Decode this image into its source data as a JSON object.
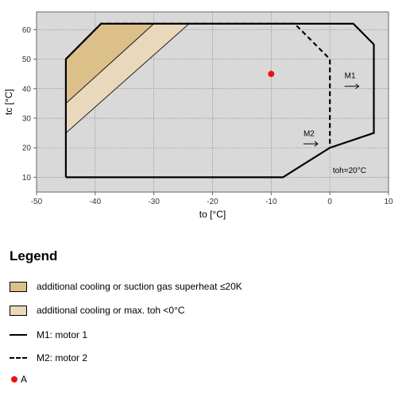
{
  "chart_data": {
    "type": "line",
    "xlabel": "to [°C]",
    "ylabel": "tc [°C]",
    "xlim": [
      -50,
      10
    ],
    "ylim": [
      5,
      66
    ],
    "x_ticks": [
      -50,
      -40,
      -30,
      -20,
      -10,
      0,
      10
    ],
    "y_ticks": [
      10,
      20,
      30,
      40,
      50,
      60
    ],
    "grid": true,
    "plot_background": "#d9d9d9",
    "series": [
      {
        "name": "M1: motor 1",
        "style": "solid",
        "points": [
          [
            -45,
            10
          ],
          [
            -8,
            10
          ],
          [
            0,
            20
          ],
          [
            7.5,
            25
          ],
          [
            7.5,
            55
          ],
          [
            4,
            62
          ],
          [
            -39,
            62
          ],
          [
            -45,
            50
          ],
          [
            -45,
            10
          ]
        ]
      },
      {
        "name": "M2: motor 2",
        "style": "dashed",
        "points": [
          [
            -45,
            50
          ],
          [
            -39,
            62
          ],
          [
            -6,
            62
          ],
          [
            0,
            50
          ],
          [
            0,
            20
          ]
        ]
      }
    ],
    "regions": [
      {
        "name": "additional cooling or suction gas superheat ≤20K",
        "color": "#dcc08a",
        "points": [
          [
            -45,
            35
          ],
          [
            -45,
            50
          ],
          [
            -39,
            62
          ],
          [
            -30,
            62
          ]
        ]
      },
      {
        "name": "additional cooling or max. toh <0°C",
        "color": "#ead8bd",
        "points": [
          [
            -45,
            25
          ],
          [
            -45,
            35
          ],
          [
            -30,
            62
          ],
          [
            -24,
            62
          ]
        ]
      }
    ],
    "markers": [
      {
        "name": "A",
        "x": -10,
        "y": 45,
        "color": "#ee1111"
      }
    ],
    "annotations": [
      {
        "text": "M1",
        "x": 2.5,
        "y": 43.5,
        "arrow": true
      },
      {
        "text": "M2",
        "x": -4.5,
        "y": 24,
        "arrow": true
      },
      {
        "text": "toh=20°C",
        "x": 0.5,
        "y": 11.5,
        "arrow": false
      }
    ]
  },
  "legend": {
    "title": "Legend",
    "items": [
      {
        "label": "additional cooling or suction gas superheat ≤20K",
        "swatch": "box",
        "color": "#dcc08a"
      },
      {
        "label": "additional cooling or max. toh <0°C",
        "swatch": "box",
        "color": "#ead8bd"
      },
      {
        "label": "M1: motor 1",
        "swatch": "solid"
      },
      {
        "label": "M2: motor 2",
        "swatch": "dashed"
      },
      {
        "label": "A",
        "swatch": "dot",
        "color": "#ee1111"
      }
    ]
  }
}
